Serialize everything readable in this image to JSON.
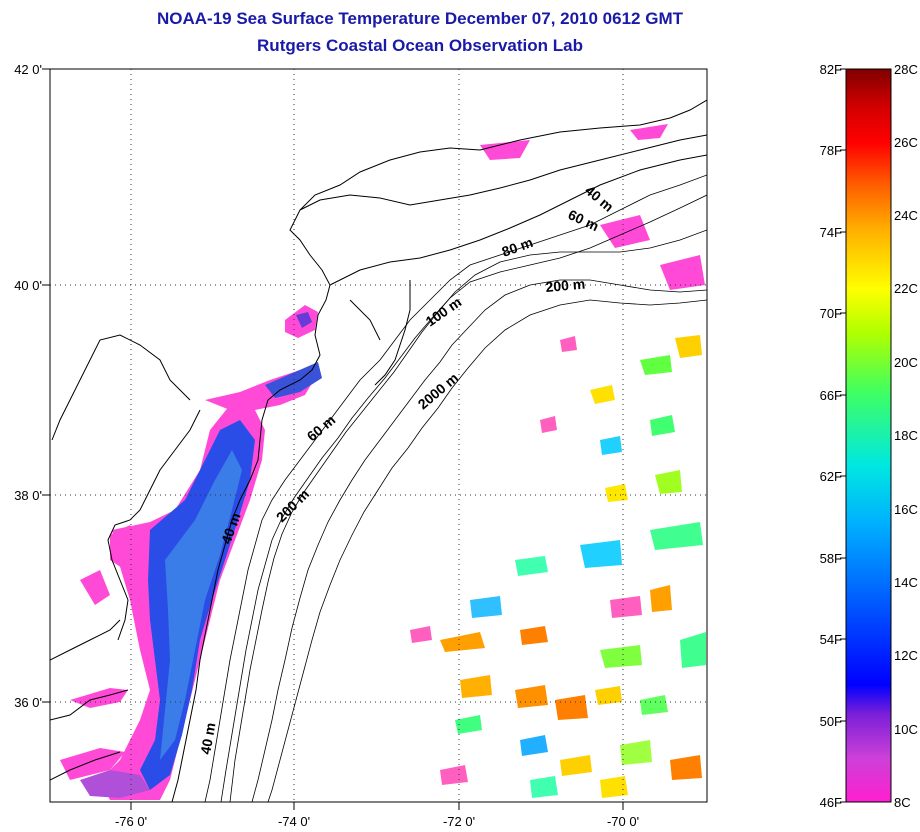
{
  "header": {
    "title": "NOAA-19 Sea Surface Temperature December 07, 2010 0612 GMT",
    "subtitle": "Rutgers Coastal Ocean Observation Lab"
  },
  "map": {
    "lat_labels": [
      "42 0'",
      "40 0'",
      "38 0'",
      "36 0'"
    ],
    "lon_labels": [
      "-76 0'",
      "-74 0'",
      "-72 0'",
      "-70 0'"
    ],
    "contour_labels": [
      "40 m",
      "60 m",
      "80 m",
      "200 m",
      "100 m",
      "2000 m",
      "60 m",
      "200 m",
      "40 m",
      "40 m"
    ],
    "land_color": "#ffffff",
    "coast_color": "#000000"
  },
  "colorbar": {
    "fahrenheit_labels": [
      "82F",
      "78F",
      "74F",
      "70F",
      "66F",
      "62F",
      "58F",
      "54F",
      "50F",
      "46F"
    ],
    "celsius_labels": [
      "28C",
      "26C",
      "24C",
      "22C",
      "20C",
      "18C",
      "16C",
      "14C",
      "12C",
      "10C",
      "8C"
    ],
    "colors": [
      "#ff1fd0",
      "#cc40d8",
      "#7a1fd8",
      "#0000ff",
      "#0060ff",
      "#00b0ff",
      "#00e8e0",
      "#40ff60",
      "#b0ff00",
      "#ffff00",
      "#ffb000",
      "#ff6000",
      "#ff0000",
      "#d00000",
      "#800000"
    ]
  }
}
